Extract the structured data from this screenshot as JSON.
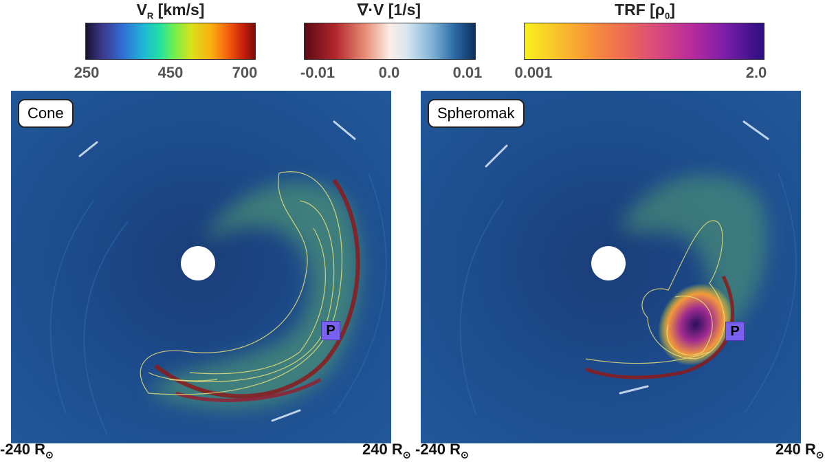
{
  "colorbars": [
    {
      "title_main": "V",
      "title_sub": "R",
      "title_unit": " [km/s]",
      "ticks": [
        "250",
        "450",
        "700"
      ]
    },
    {
      "title_main": "∇·V",
      "title_sub": "",
      "title_unit": " [1/s]",
      "ticks": [
        "-0.01",
        "0.0",
        "0.01"
      ]
    },
    {
      "title_main": "TRF [ρ",
      "title_sub": "0",
      "title_unit": "]",
      "ticks": [
        "0.001",
        "2.0"
      ]
    }
  ],
  "panels": [
    {
      "label": "Cone",
      "marker": "P"
    },
    {
      "label": "Spheromak",
      "marker": "P"
    }
  ],
  "axis": {
    "left_min": "-240 R",
    "left_max": "240 R",
    "right_min": "-240 R",
    "right_max": "240 R",
    "sun_symbol": "⊙"
  },
  "colors": {
    "background": "#1d4d8c",
    "sun": "#ffffff",
    "marker": "#7a60f0"
  }
}
